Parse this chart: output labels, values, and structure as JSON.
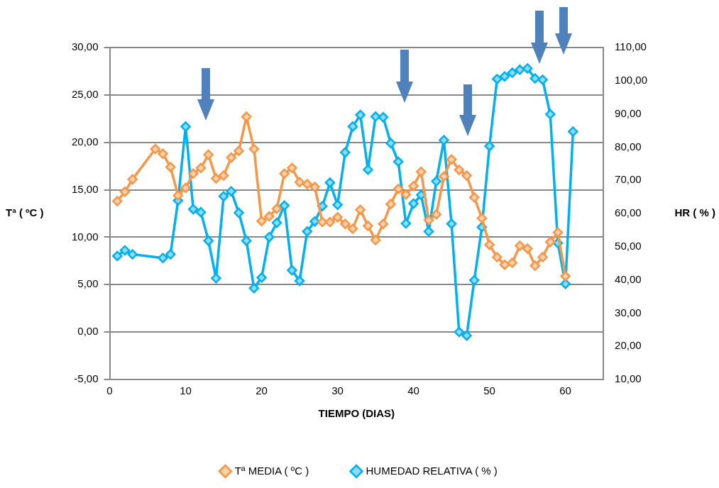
{
  "chart_data": {
    "type": "line",
    "xlabel": "TIEMPO (DIAS)",
    "ylabel": "Tª ( ºC )",
    "y2label": "HR ( % )",
    "xlim": [
      0,
      65
    ],
    "xticks": [
      0,
      10,
      20,
      30,
      40,
      50,
      60
    ],
    "ylim": [
      -5,
      30
    ],
    "yticks": [
      {
        "value": -5,
        "label": "-5,00"
      },
      {
        "value": 0,
        "label": "0,00"
      },
      {
        "value": 5,
        "label": "5,00"
      },
      {
        "value": 10,
        "label": "10,00"
      },
      {
        "value": 15,
        "label": "15,00"
      },
      {
        "value": 20,
        "label": "20,00"
      },
      {
        "value": 25,
        "label": "25,00"
      },
      {
        "value": 30,
        "label": "30,00"
      }
    ],
    "y2lim": [
      10,
      110
    ],
    "y2ticks": [
      {
        "value": 10,
        "label": "10,00"
      },
      {
        "value": 20,
        "label": "20,00"
      },
      {
        "value": 30,
        "label": "30,00"
      },
      {
        "value": 40,
        "label": "40,00"
      },
      {
        "value": 50,
        "label": "50,00"
      },
      {
        "value": 60,
        "label": "60,00"
      },
      {
        "value": 70,
        "label": "70,00"
      },
      {
        "value": 80,
        "label": "80,00"
      },
      {
        "value": 90,
        "label": "90,00"
      },
      {
        "value": 100,
        "label": "100,00"
      },
      {
        "value": 110,
        "label": "110,00"
      }
    ],
    "grid": "y",
    "legend": "bottom",
    "marker": "diamond",
    "line_style": "solid",
    "series": [
      {
        "name": "Tª MEDIA ( ºC )",
        "color": "#f79646",
        "x": [
          1,
          2,
          3,
          6,
          7,
          8,
          9,
          10,
          11,
          12,
          13,
          14,
          15,
          16,
          17,
          18,
          19,
          20,
          21,
          22,
          23,
          24,
          25,
          26,
          27,
          28,
          29,
          30,
          31,
          32,
          33,
          34,
          35,
          36,
          37,
          38,
          39,
          40,
          41,
          42,
          43,
          44,
          45,
          46,
          47,
          48,
          49,
          50,
          51,
          52,
          53,
          54,
          55,
          56,
          57,
          58,
          59,
          60
        ],
        "values": [
          13.8,
          14.8,
          16.1,
          19.3,
          18.8,
          17.4,
          14.4,
          15.2,
          16.7,
          17.3,
          18.7,
          16.2,
          16.5,
          18.4,
          19.1,
          22.7,
          19.3,
          11.7,
          12.2,
          13.0,
          16.7,
          17.3,
          15.8,
          15.6,
          15.3,
          11.6,
          11.6,
          12.1,
          11.4,
          10.9,
          12.9,
          11.2,
          9.7,
          11.4,
          13.5,
          15.1,
          14.5,
          15.4,
          16.9,
          11.8,
          12.4,
          16.4,
          18.2,
          17.1,
          16.5,
          14.2,
          12.0,
          9.2,
          7.9,
          7.1,
          7.3,
          9.1,
          8.8,
          7.0,
          7.9,
          9.5,
          10.5,
          5.9
        ]
      },
      {
        "name": "HUMEDAD RELATIVA ( % )",
        "color": "#00b0f0",
        "axis": "y2",
        "x": [
          1,
          2,
          3,
          7,
          8,
          9,
          10,
          11,
          12,
          13,
          14,
          15,
          16,
          17,
          18,
          19,
          20,
          21,
          22,
          23,
          24,
          25,
          26,
          27,
          28,
          29,
          30,
          31,
          32,
          33,
          34,
          35,
          36,
          37,
          38,
          39,
          40,
          41,
          42,
          43,
          44,
          45,
          46,
          47,
          48,
          49,
          50,
          51,
          52,
          53,
          54,
          55,
          56,
          57,
          58,
          59,
          60,
          61
        ],
        "values": [
          47.2,
          48.9,
          47.7,
          46.6,
          47.7,
          63.9,
          86.2,
          61.3,
          60.4,
          51.8,
          40.5,
          65.2,
          66.7,
          60.2,
          51.8,
          37.5,
          40.7,
          52.9,
          57.2,
          62.4,
          42.9,
          39.7,
          54.6,
          57.6,
          62.2,
          69.3,
          62.6,
          78.4,
          86.2,
          89.7,
          73.2,
          89.2,
          89.0,
          81.2,
          75.6,
          57.0,
          63.0,
          65.6,
          54.6,
          69.7,
          82.1,
          56.9,
          24.3,
          23.2,
          39.9,
          55.9,
          80.3,
          100.5,
          101.3,
          102.4,
          103.3,
          103.7,
          100.7,
          100.3,
          89.9,
          51.1,
          38.8,
          84.7
        ]
      }
    ]
  }
}
